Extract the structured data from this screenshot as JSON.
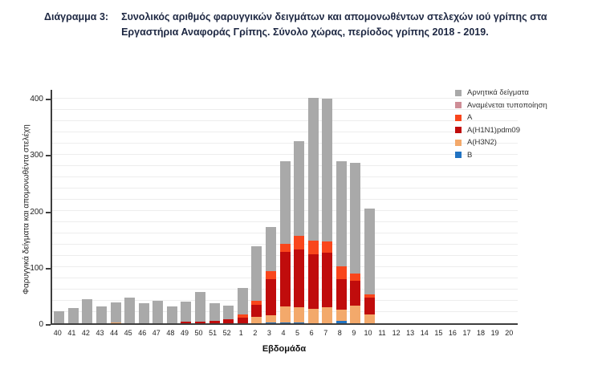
{
  "title": {
    "label": "Διάγραμμα 3:",
    "line1": "Συνολικός αριθμός φαρυγγικών δειγμάτων και απομονωθέντων στελεχών ιού γρίπης στα",
    "line2": "Εργαστήρια Αναφοράς Γρίπης. Σύνολο χώρας, περίοδος γρίπης 2018 - 2019."
  },
  "chart_data": {
    "type": "bar",
    "stacked": true,
    "xlabel": "Εβδομάδα",
    "ylabel": "Φαρυγγικά δείγματα και απομονωθέντα στελέχη",
    "ylim": [
      0,
      400
    ],
    "yticks": [
      0,
      100,
      200,
      300,
      400
    ],
    "grid_step": 20,
    "legend_position": "top-right",
    "axis_color": "#3e3e3e",
    "gridline_color": "#ededed",
    "categories": [
      "40",
      "41",
      "42",
      "43",
      "44",
      "45",
      "46",
      "47",
      "48",
      "49",
      "50",
      "51",
      "52",
      "1",
      "2",
      "3",
      "4",
      "5",
      "6",
      "7",
      "8",
      "9",
      "10",
      "11",
      "12",
      "13",
      "14",
      "15",
      "16",
      "17",
      "18",
      "19",
      "20"
    ],
    "series": [
      {
        "key": "b",
        "name": "B",
        "color": "#2173c2",
        "values": [
          0,
          0,
          0,
          0,
          0,
          0,
          0,
          0,
          0,
          0,
          0,
          0,
          0,
          0,
          0,
          1,
          2,
          1,
          0,
          0,
          4,
          0,
          0,
          0,
          0,
          0,
          0,
          0,
          0,
          0,
          0,
          0,
          0
        ]
      },
      {
        "key": "a-h3n2",
        "name": "A(H3N2)",
        "color": "#f3a96b",
        "values": [
          0,
          0,
          0,
          0,
          1,
          0,
          0,
          0,
          0,
          0,
          0,
          0,
          0,
          0,
          12,
          13,
          28,
          27,
          26,
          28,
          20,
          32,
          15,
          0,
          0,
          0,
          0,
          0,
          0,
          0,
          0,
          0,
          0
        ]
      },
      {
        "key": "a-h1n1-pdm09",
        "name": "A(H1N1)pdm09",
        "color": "#c00c0c",
        "values": [
          0,
          0,
          0,
          0,
          0,
          0,
          0,
          0,
          0,
          3,
          3,
          4,
          7,
          10,
          21,
          64,
          97,
          103,
          97,
          97,
          55,
          44,
          30,
          0,
          0,
          0,
          0,
          0,
          0,
          0,
          0,
          0,
          0
        ]
      },
      {
        "key": "a",
        "name": "A",
        "color": "#f9461c",
        "values": [
          0,
          0,
          0,
          0,
          0,
          0,
          0,
          0,
          0,
          0,
          0,
          0,
          0,
          5,
          7,
          14,
          14,
          24,
          23,
          20,
          22,
          13,
          7,
          0,
          0,
          0,
          0,
          0,
          0,
          0,
          0,
          0,
          0
        ]
      },
      {
        "key": "pending",
        "name": "Αναμένεται τυποποίηση",
        "color": "#ce8d96",
        "values": [
          0,
          0,
          0,
          0,
          0,
          0,
          0,
          0,
          0,
          0,
          0,
          0,
          0,
          0,
          0,
          0,
          0,
          0,
          0,
          0,
          0,
          0,
          0,
          0,
          0,
          0,
          0,
          0,
          0,
          0,
          0,
          0,
          0
        ]
      },
      {
        "key": "negative",
        "name": "Αρνητικά δείγματα",
        "color": "#a9a9a9",
        "values": [
          22,
          27,
          43,
          30,
          36,
          46,
          36,
          40,
          30,
          35,
          52,
          31,
          24,
          47,
          96,
          79,
          146,
          168,
          254,
          253,
          186,
          196,
          151,
          0,
          0,
          0,
          0,
          0,
          0,
          0,
          0,
          0,
          0
        ]
      }
    ],
    "legend_order": [
      "negative",
      "pending",
      "a",
      "a-h1n1-pdm09",
      "a-h3n2",
      "b"
    ]
  }
}
